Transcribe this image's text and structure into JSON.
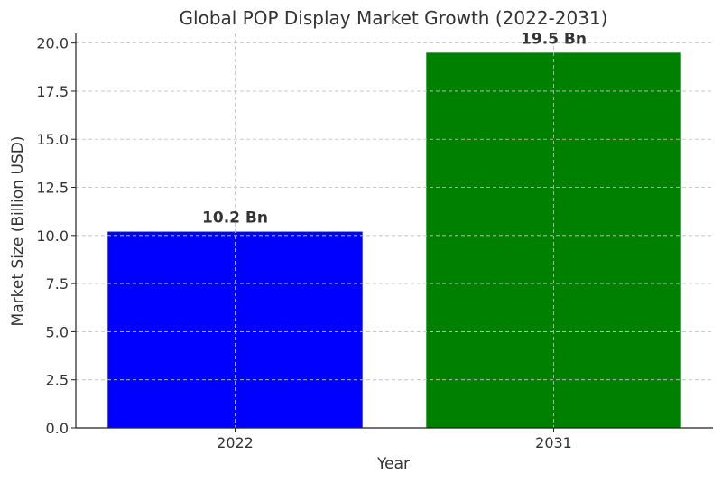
{
  "chart_data": {
    "type": "bar",
    "title": "Global POP Display Market Growth (2022-2031)",
    "xlabel": "Year",
    "ylabel": "Market Size (Billion USD)",
    "categories": [
      "2022",
      "2031"
    ],
    "values": [
      10.2,
      19.5
    ],
    "data_labels": [
      "10.2 Bn",
      "19.5 Bn"
    ],
    "colors": [
      "#0000ff",
      "#008000"
    ],
    "ylim": [
      0,
      20.5
    ],
    "yticks": [
      0,
      2.5,
      5,
      7.5,
      10,
      12.5,
      15,
      17.5,
      20
    ],
    "ytick_labels": [
      "0.0",
      "2.5",
      "5.0",
      "7.5",
      "10.0",
      "12.5",
      "15.0",
      "17.5",
      "20.0"
    ],
    "grid": true,
    "legend": "none"
  }
}
